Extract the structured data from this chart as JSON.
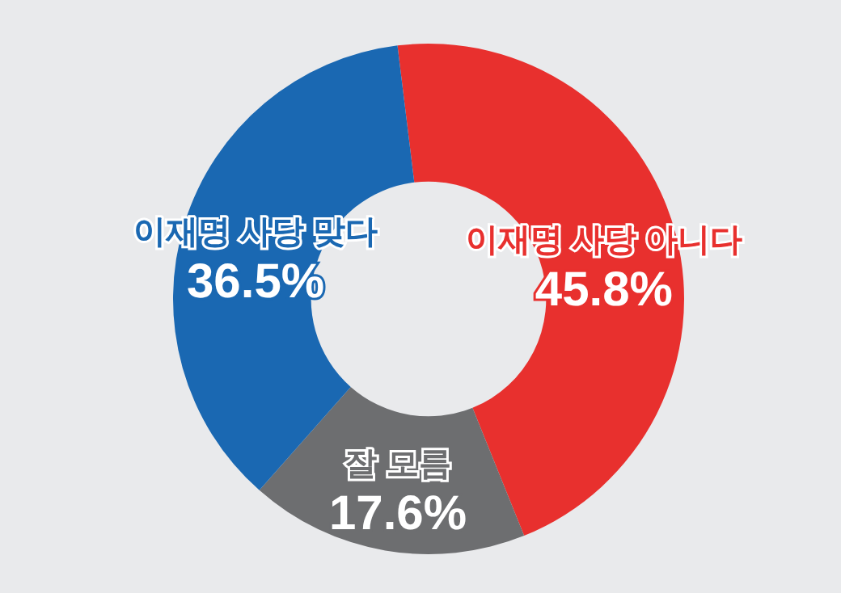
{
  "chart_data": {
    "type": "donut",
    "categories": [
      "이재명 사당 아니다",
      "잘 모름",
      "이재명 사당 맞다"
    ],
    "values": [
      45.8,
      17.6,
      36.5
    ],
    "value_labels": [
      "45.8%",
      "17.6%",
      "36.5%"
    ],
    "colors": [
      "#e8302e",
      "#6d6e70",
      "#1a68b2"
    ]
  }
}
